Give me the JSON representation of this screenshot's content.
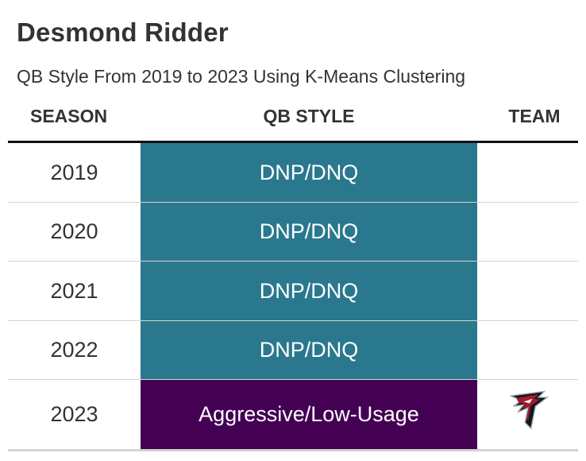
{
  "title": "Desmond Ridder",
  "subtitle": "QB Style From 2019 to 2023 Using K-Means Clustering",
  "headers": {
    "season": "SEASON",
    "qb_style": "QB STYLE",
    "team": "TEAM"
  },
  "colors": {
    "dnp_dnq": "#2a788e",
    "aggressive_low_usage": "#440154"
  },
  "chart_data": {
    "type": "table",
    "title": "Desmond Ridder",
    "subtitle": "QB Style From 2019 to 2023 Using K-Means Clustering",
    "columns": [
      "SEASON",
      "QB STYLE",
      "TEAM"
    ],
    "rows": [
      {
        "season": "2019",
        "qb_style": "DNP/DNQ",
        "color": "#2a788e",
        "team_logo": ""
      },
      {
        "season": "2020",
        "qb_style": "DNP/DNQ",
        "color": "#2a788e",
        "team_logo": ""
      },
      {
        "season": "2021",
        "qb_style": "DNP/DNQ",
        "color": "#2a788e",
        "team_logo": ""
      },
      {
        "season": "2022",
        "qb_style": "DNP/DNQ",
        "color": "#2a788e",
        "team_logo": ""
      },
      {
        "season": "2023",
        "qb_style": "Aggressive/Low-Usage",
        "color": "#440154",
        "team_logo": "falcons-logo-icon"
      }
    ]
  }
}
